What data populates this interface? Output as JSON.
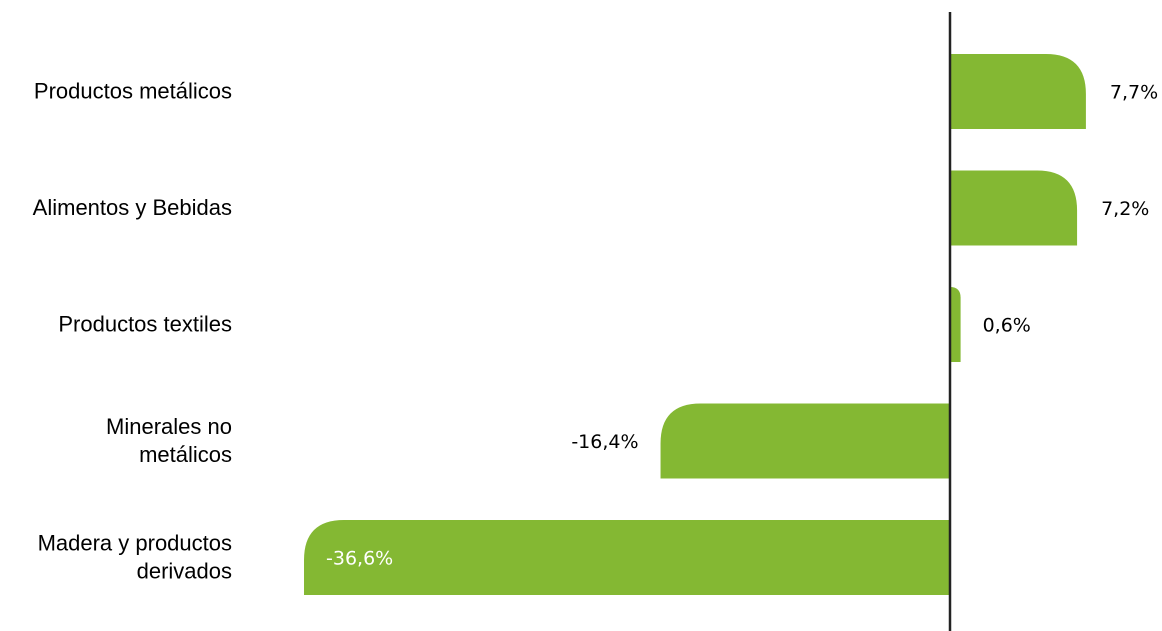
{
  "chart_data": {
    "type": "bar",
    "orientation": "horizontal",
    "categories": [
      [
        "Productos metálicos"
      ],
      [
        "Alimentos y Bebidas"
      ],
      [
        "Productos textiles"
      ],
      [
        "Minerales no",
        "metálicos"
      ],
      [
        "Madera y productos",
        "derivados"
      ]
    ],
    "values": [
      7.7,
      7.2,
      0.6,
      -16.4,
      -36.6
    ],
    "value_labels": [
      "7,7%",
      "7,2%",
      "0,6%",
      "-16,4%",
      "-36,6%"
    ],
    "title": "",
    "xlabel": "",
    "ylabel": "",
    "xlim": [
      -36.6,
      12.0
    ],
    "grid": false,
    "legend": "none"
  },
  "colors": {
    "bar": "#84b833",
    "axis": "#222222",
    "label": "#000000",
    "inside_label": "#ffffff"
  }
}
